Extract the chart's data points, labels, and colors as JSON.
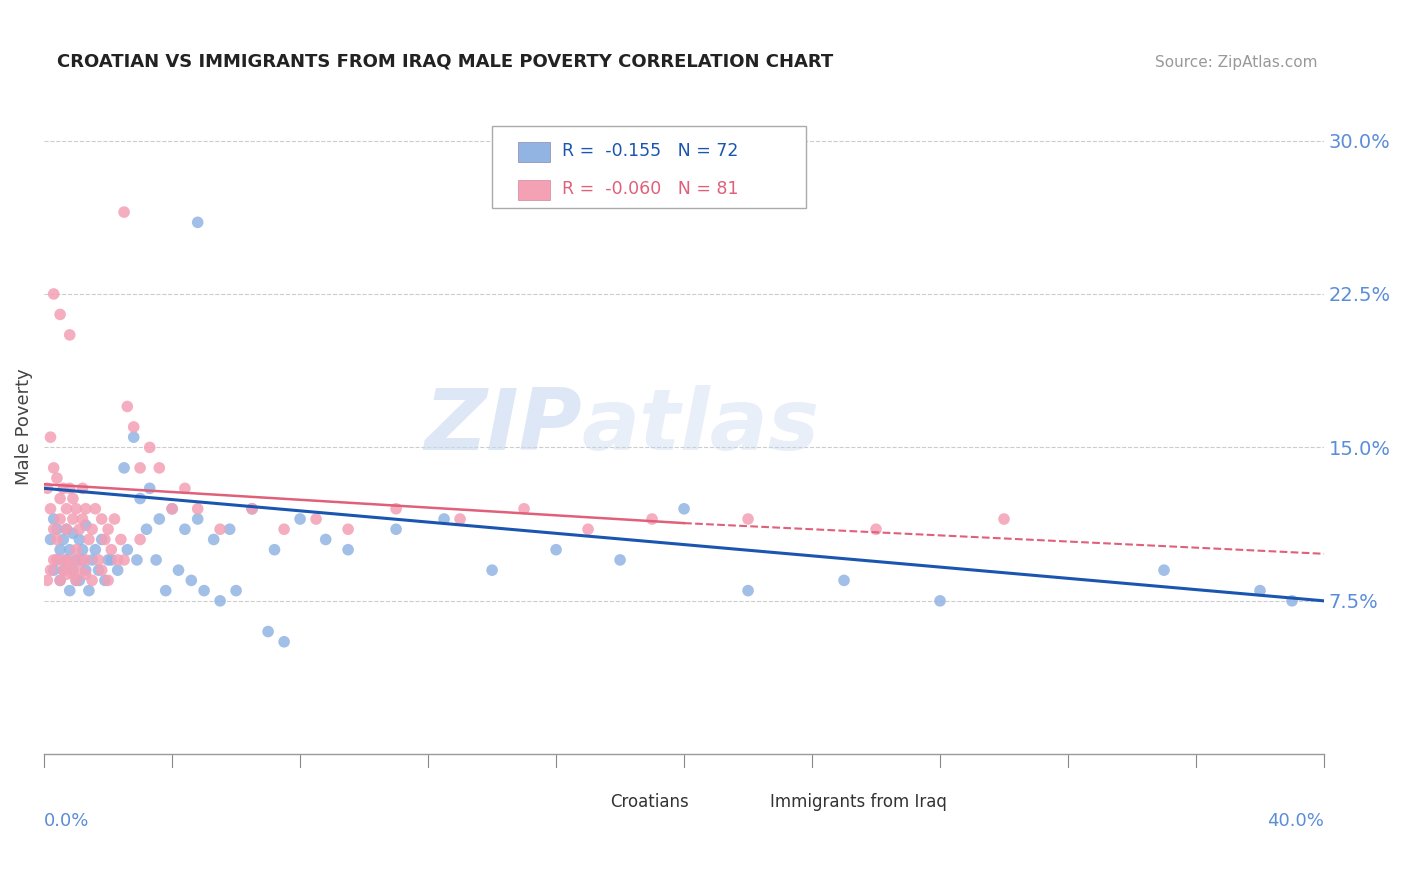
{
  "title": "CROATIAN VS IMMIGRANTS FROM IRAQ MALE POVERTY CORRELATION CHART",
  "source": "Source: ZipAtlas.com",
  "ylabel": "Male Poverty",
  "xlim": [
    0.0,
    0.4
  ],
  "ylim": [
    0.0,
    0.32
  ],
  "ytick_vals": [
    0.075,
    0.15,
    0.225,
    0.3
  ],
  "ytick_labels": [
    "7.5%",
    "15.0%",
    "22.5%",
    "30.0%"
  ],
  "series1_label": "Croatians",
  "series1_color": "#92b4e3",
  "series1_line_color": "#1a56b0",
  "series2_label": "Immigrants from Iraq",
  "series2_color": "#f4a0b5",
  "series2_line_color": "#e0607a",
  "tick_color": "#5b8dd9",
  "watermark": "ZIPatlas",
  "background_color": "#ffffff"
}
